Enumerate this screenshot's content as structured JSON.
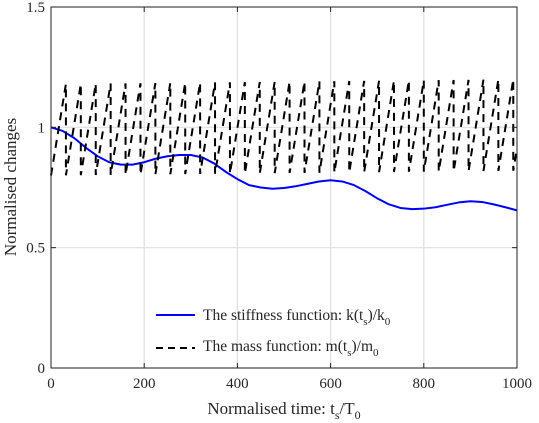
{
  "chart_data": {
    "type": "line",
    "xlabel": "Normalised time: t_s/T_0",
    "ylabel": "Normalised changes",
    "xlim": [
      0,
      1000
    ],
    "ylim": [
      0,
      1.5
    ],
    "x_ticks": [
      "0",
      "200",
      "400",
      "600",
      "800",
      "1000"
    ],
    "y_ticks": [
      "0",
      "0.5",
      "1",
      "1.5"
    ],
    "grid": true,
    "legend_position": "bottom-center",
    "series": [
      {
        "name": "The stiffness function: k(t_s)/k_0",
        "style": "solid",
        "color": "#0000ff",
        "x": [
          0,
          25,
          50,
          75,
          100,
          125,
          150,
          175,
          200,
          225,
          250,
          275,
          300,
          325,
          350,
          375,
          400,
          425,
          450,
          475,
          500,
          525,
          550,
          575,
          600,
          625,
          650,
          675,
          700,
          725,
          750,
          775,
          800,
          825,
          850,
          875,
          900,
          925,
          950,
          975,
          1000
        ],
        "values": [
          1.0,
          0.985,
          0.955,
          0.915,
          0.88,
          0.855,
          0.845,
          0.845,
          0.855,
          0.87,
          0.88,
          0.885,
          0.885,
          0.875,
          0.85,
          0.815,
          0.785,
          0.76,
          0.75,
          0.745,
          0.748,
          0.755,
          0.765,
          0.775,
          0.78,
          0.775,
          0.76,
          0.735,
          0.705,
          0.68,
          0.665,
          0.66,
          0.662,
          0.668,
          0.678,
          0.688,
          0.693,
          0.69,
          0.68,
          0.668,
          0.655
        ]
      },
      {
        "name": "The mass function: m(t_s)/m_0",
        "style": "dashed",
        "color": "#000000",
        "description_of_shape": "sawtooth oscillation",
        "period": 32,
        "low_start": 0.8,
        "low_end": 0.82,
        "high_start": 1.18,
        "high_end": 1.2,
        "x_range": [
          0,
          1000
        ]
      }
    ]
  },
  "legend": {
    "stiffness_text": "The stiffness function: k(t",
    "stiffness_sub1": "s",
    "stiffness_mid": ")/k",
    "stiffness_sub2": "0",
    "mass_text": "The mass function: m(t",
    "mass_sub1": "s",
    "mass_mid": ")/m",
    "mass_sub2": "0"
  },
  "axes": {
    "xlabel_main": "Normalised time: t",
    "xlabel_sub1": "s",
    "xlabel_mid": "/T",
    "xlabel_sub2": "0",
    "ylabel": "Normalised changes"
  }
}
